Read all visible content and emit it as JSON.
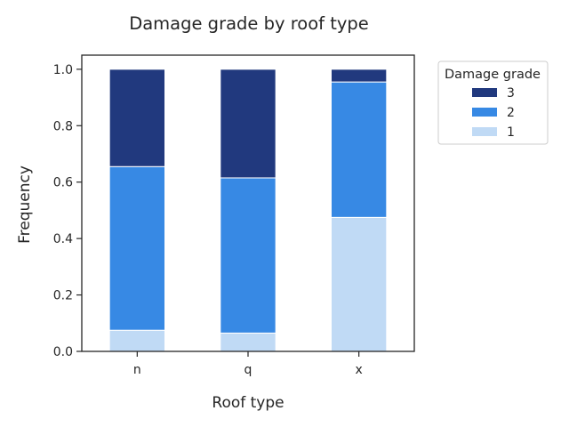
{
  "chart_data": {
    "type": "bar",
    "stacked": true,
    "title": "Damage grade by roof type",
    "xlabel": "Roof type",
    "ylabel": "Frequency",
    "ylim": [
      0,
      1.05
    ],
    "yticks": [
      "0.0",
      "0.2",
      "0.4",
      "0.6",
      "0.8",
      "1.0"
    ],
    "categories": [
      "n",
      "q",
      "x"
    ],
    "legend_title": "Damage grade",
    "legend_position": "outside-top-right",
    "grid": false,
    "series": [
      {
        "name": "1",
        "color": "#c0daf5",
        "values": [
          0.075,
          0.065,
          0.475
        ]
      },
      {
        "name": "2",
        "color": "#3789e4",
        "values": [
          0.58,
          0.55,
          0.48
        ]
      },
      {
        "name": "3",
        "color": "#21397e",
        "values": [
          0.345,
          0.385,
          0.045
        ]
      }
    ],
    "legend_order": [
      "3",
      "2",
      "1"
    ]
  }
}
